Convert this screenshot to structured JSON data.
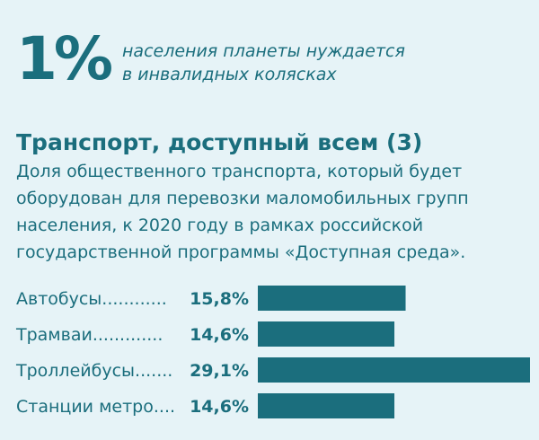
{
  "colors": {
    "background": "#e6f3f7",
    "accent": "#1b6e7d"
  },
  "stat": {
    "value": "1%",
    "caption_line1": "населения планеты нуждается",
    "caption_line2": "в инвалидных колясках"
  },
  "chart_data": {
    "type": "bar",
    "orientation": "horizontal",
    "title": "Транспорт, доступный всем (3)",
    "subtitle_lines": [
      "Доля общественного транспорта, который будет",
      "оборудован для перевозки маломобильных групп",
      "населения, к 2020 году в рамках российской",
      "государственной программы «Доступная среда»."
    ],
    "categories": [
      "Автобусы",
      "Трамваи",
      "Троллейбусы",
      "Станции метро"
    ],
    "dot_leaders": [
      "............",
      ".............",
      ".......",
      "...."
    ],
    "values": [
      15.8,
      14.6,
      29.1,
      14.6
    ],
    "value_labels": [
      "15,8%",
      "14,6%",
      "29,1%",
      "14,6%"
    ],
    "xlim": [
      0,
      29.1
    ],
    "grid": false,
    "legend": "none"
  }
}
